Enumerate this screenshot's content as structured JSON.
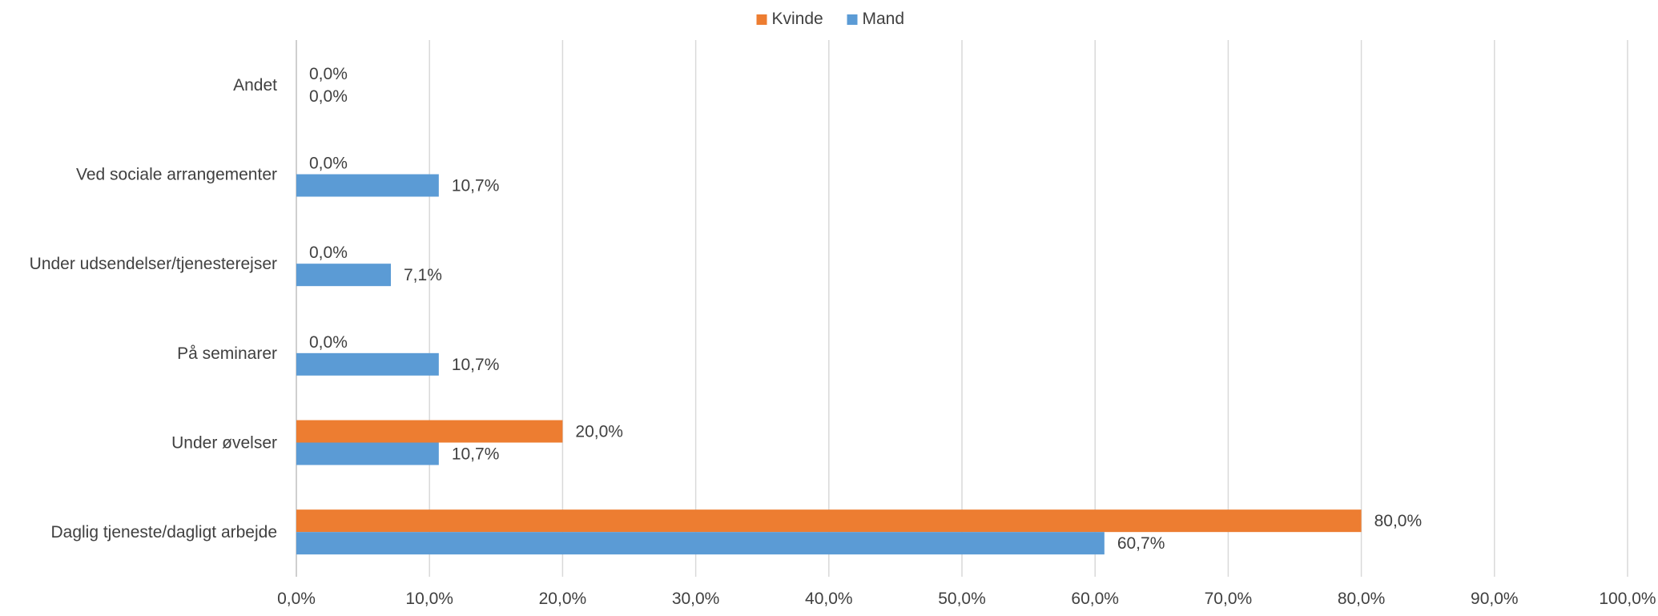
{
  "chart_data": {
    "type": "bar",
    "orientation": "horizontal",
    "categories": [
      "Andet",
      "Ved sociale arrangementer",
      "Under udsendelser/tjenesterejser",
      "På seminarer",
      "Under øvelser",
      "Daglig tjeneste/dagligt arbejde"
    ],
    "series": [
      {
        "name": "Kvinde",
        "color": "#ED7D31",
        "values": [
          0.0,
          0.0,
          0.0,
          0.0,
          20.0,
          80.0
        ],
        "labels": [
          "0,0%",
          "0,0%",
          "0,0%",
          "0,0%",
          "20,0%",
          "80,0%"
        ]
      },
      {
        "name": "Mand",
        "color": "#5B9BD5",
        "values": [
          0.0,
          10.7,
          7.1,
          10.7,
          10.7,
          60.7
        ],
        "labels": [
          "0,0%",
          "10,7%",
          "7,1%",
          "10,7%",
          "10,7%",
          "60,7%"
        ]
      }
    ],
    "xlim": [
      0,
      100
    ],
    "xticks": [
      0,
      10,
      20,
      30,
      40,
      50,
      60,
      70,
      80,
      90,
      100
    ],
    "xtick_labels": [
      "0,0%",
      "10,0%",
      "20,0%",
      "30,0%",
      "40,0%",
      "50,0%",
      "60,0%",
      "70,0%",
      "80,0%",
      "90,0%",
      "100,0%"
    ],
    "grid": true,
    "gridline_color": "#D9D9D9",
    "legend_position": "top-center",
    "title": "",
    "xlabel": "",
    "ylabel": ""
  }
}
